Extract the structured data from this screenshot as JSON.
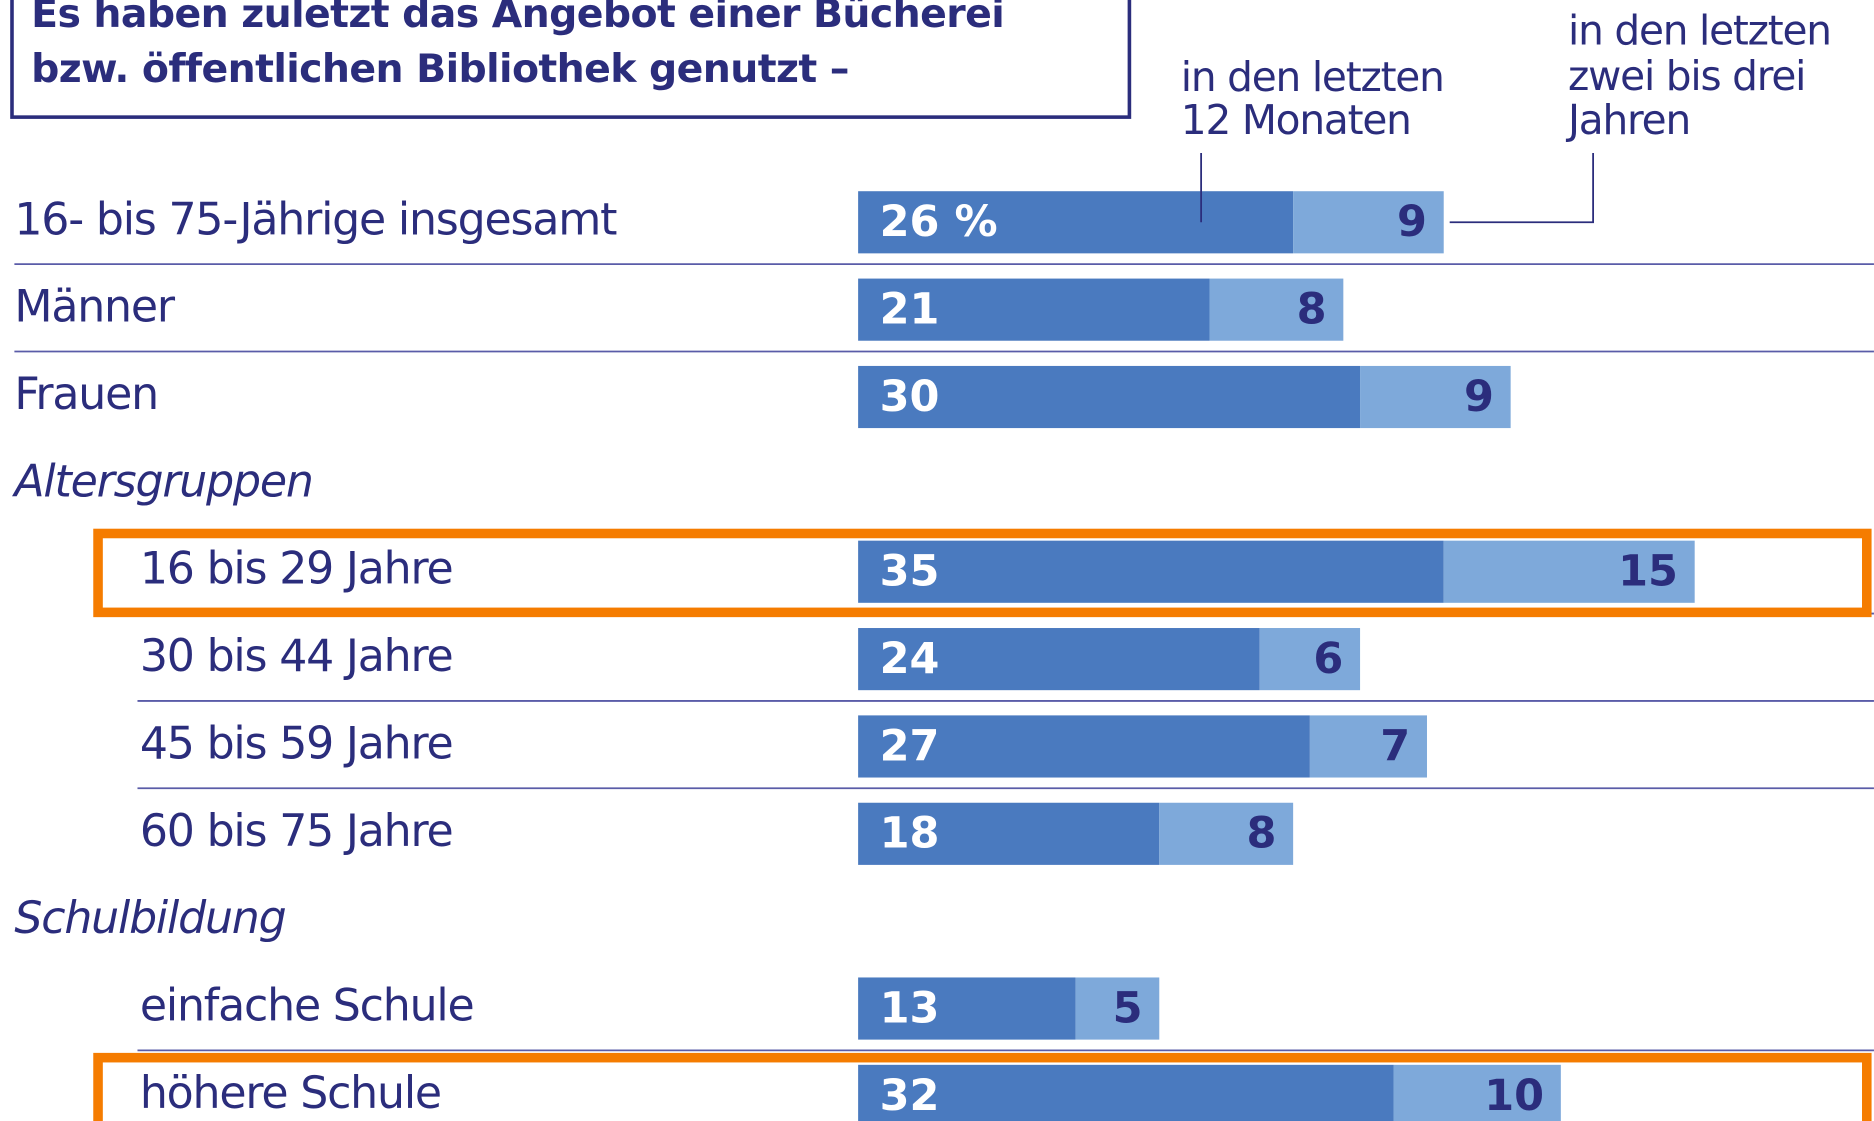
{
  "chart_data": {
    "type": "stacked-bar-horizontal",
    "title": [
      "Es haben zuletzt das Angebot einer Bücherei",
      "bzw. öffentlichen Bibliothek genutzt –"
    ],
    "categories": [
      "16- bis 75-Jährige insgesamt",
      "Männer",
      "Frauen",
      "Altersgruppen",
      "16 bis 29 Jahre",
      "30 bis 44 Jahre",
      "45 bis 59 Jahre",
      "60 bis 75 Jahre",
      "Schulbildung",
      "einfache Schule",
      "höhere Schule"
    ],
    "series": [
      {
        "name": [
          "in den letzten",
          "12 Monaten"
        ],
        "color": "#4a7abf",
        "values": [
          26,
          21,
          30,
          null,
          35,
          24,
          27,
          18,
          null,
          13,
          32
        ],
        "value_labels": [
          "26 %",
          "21",
          "30",
          null,
          "35",
          "24",
          "27",
          "18",
          null,
          "13",
          "32"
        ]
      },
      {
        "name": [
          "in den letzten",
          "zwei bis drei",
          "Jahren"
        ],
        "color": "#7ea9da",
        "values": [
          9,
          8,
          9,
          null,
          15,
          6,
          7,
          8,
          null,
          5,
          10
        ]
      }
    ],
    "highlighted": [
      4,
      10
    ],
    "highlight_color": "#f57c00"
  }
}
